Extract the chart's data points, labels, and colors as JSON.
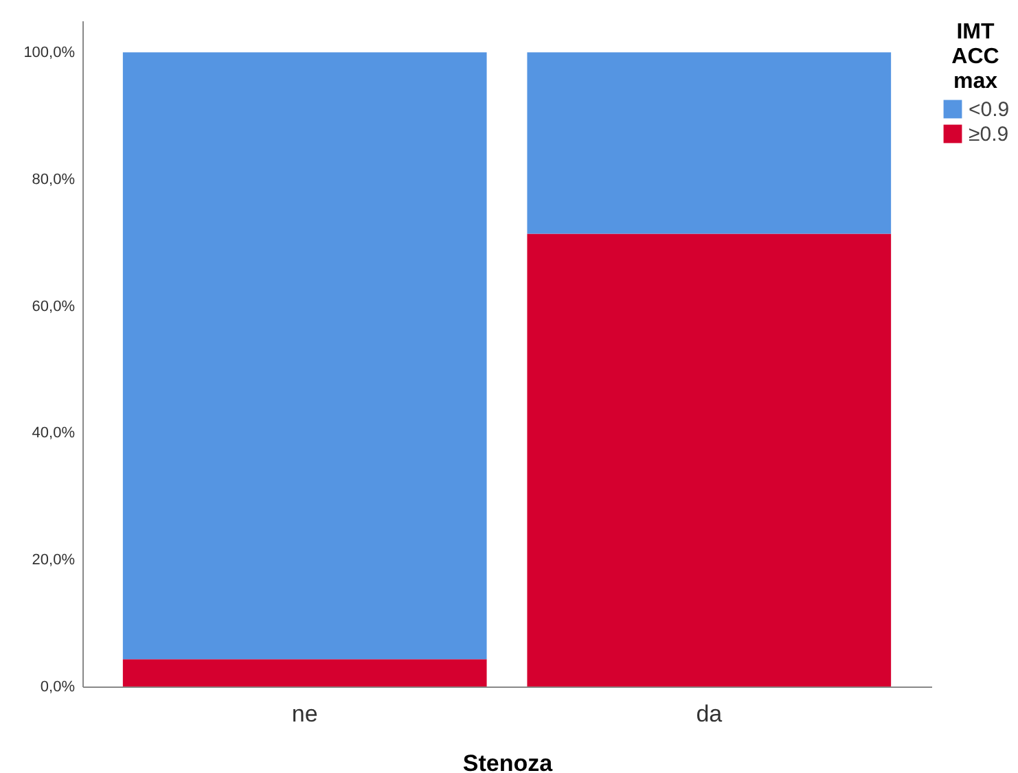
{
  "chart_data": {
    "type": "bar",
    "stacked": true,
    "xlabel": "Stenoza",
    "legend_title": "IMT ACC max",
    "legend": "top right",
    "grid": false,
    "categories": [
      "ne",
      "da"
    ],
    "series": [
      {
        "name": "≥0.9",
        "color": "#d5002f",
        "values": [
          4.3,
          71.4
        ]
      },
      {
        "name": "<0.9",
        "color": "#5595e2",
        "values": [
          95.7,
          28.6
        ]
      }
    ],
    "ylim": [
      0,
      105
    ],
    "yticks": [
      {
        "value": 0,
        "label": "0,0%"
      },
      {
        "value": 20,
        "label": "20,0%"
      },
      {
        "value": 40,
        "label": "40,0%"
      },
      {
        "value": 60,
        "label": "60,0%"
      },
      {
        "value": 80,
        "label": "80,0%"
      },
      {
        "value": 100,
        "label": "100,0%"
      }
    ]
  }
}
